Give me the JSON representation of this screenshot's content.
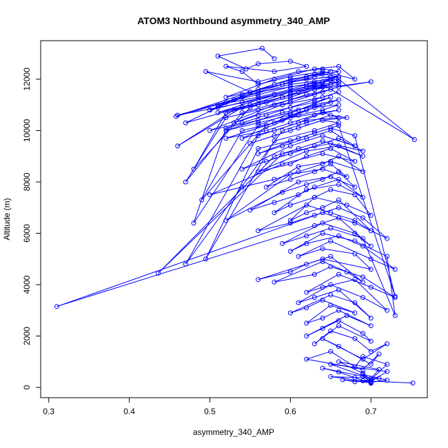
{
  "chart_data": {
    "type": "scatter",
    "style": "points connected by lines (sequence order)",
    "title": "ATOM3 Northbound asymmetry_340_AMP",
    "xlabel": "asymmetry_340_AMP",
    "ylabel": "Altitude (m)",
    "xlim": [
      0.29,
      0.77
    ],
    "ylim": [
      -400,
      13500
    ],
    "x_ticks": [
      "0.3",
      "0.4",
      "0.5",
      "0.6",
      "0.7"
    ],
    "x_tick_values": [
      0.3,
      0.4,
      0.5,
      0.6,
      0.7
    ],
    "y_ticks": [
      "0",
      "2000",
      "4000",
      "6000",
      "8000",
      "10000",
      "12000"
    ],
    "y_tick_values": [
      0,
      2000,
      4000,
      6000,
      8000,
      10000,
      12000
    ],
    "grid": false,
    "legend": "none",
    "color": "#0000ff",
    "series": [
      {
        "x": [
          0.752,
          0.69,
          0.7,
          0.665,
          0.68,
          0.71,
          0.65,
          0.7,
          0.72,
          0.69,
          0.7,
          0.68,
          0.66,
          0.64,
          0.69,
          0.7,
          0.72,
          0.65,
          0.7,
          0.71,
          0.66,
          0.69,
          0.7,
          0.72,
          0.69,
          0.68,
          0.65,
          0.62,
          0.69,
          0.71,
          0.7,
          0.66,
          0.64,
          0.69,
          0.72,
          0.7,
          0.68,
          0.65,
          0.63,
          0.66,
          0.7,
          0.69,
          0.66,
          0.64,
          0.62,
          0.67,
          0.7,
          0.66,
          0.64,
          0.62,
          0.65,
          0.68,
          0.64,
          0.62,
          0.6,
          0.65,
          0.68,
          0.7,
          0.66,
          0.63,
          0.61,
          0.65,
          0.69,
          0.72,
          0.68,
          0.64,
          0.62,
          0.66,
          0.7,
          0.73,
          0.69,
          0.65,
          0.63,
          0.58,
          0.64,
          0.67,
          0.69,
          0.65,
          0.62,
          0.6,
          0.56,
          0.64,
          0.7,
          0.68,
          0.64,
          0.61,
          0.65,
          0.7,
          0.73,
          0.69,
          0.66,
          0.62,
          0.6,
          0.64,
          0.68,
          0.72,
          0.73,
          0.69,
          0.65,
          0.62,
          0.59,
          0.64,
          0.68,
          0.7,
          0.66,
          0.63,
          0.31,
          0.64,
          0.68,
          0.72,
          0.69,
          0.66,
          0.63,
          0.6,
          0.56,
          0.62,
          0.65,
          0.68,
          0.7,
          0.66,
          0.64,
          0.62,
          0.6,
          0.63,
          0.67,
          0.7,
          0.68,
          0.65,
          0.63,
          0.6,
          0.58,
          0.62,
          0.66,
          0.69,
          0.66,
          0.63,
          0.61,
          0.58,
          0.55,
          0.61,
          0.65,
          0.68,
          0.66,
          0.64,
          0.62,
          0.59,
          0.52,
          0.6,
          0.64,
          0.67,
          0.65,
          0.63,
          0.6,
          0.57,
          0.61,
          0.65,
          0.69,
          0.66,
          0.64,
          0.61,
          0.58,
          0.54,
          0.5,
          0.59,
          0.64,
          0.68,
          0.65,
          0.62,
          0.6,
          0.56,
          0.62,
          0.66,
          0.69,
          0.64,
          0.61,
          0.58,
          0.436,
          0.59,
          0.65,
          0.69,
          0.66,
          0.63,
          0.6,
          0.57,
          0.54,
          0.6,
          0.64,
          0.68,
          0.65,
          0.62,
          0.59,
          0.56,
          0.61,
          0.65,
          0.68,
          0.73,
          0.66,
          0.63,
          0.6,
          0.56,
          0.495,
          0.58,
          0.63,
          0.66,
          0.64,
          0.61,
          0.58,
          0.55,
          0.6,
          0.64,
          0.67,
          0.65,
          0.62,
          0.59,
          0.47,
          0.56,
          0.62,
          0.66,
          0.64,
          0.61,
          0.58,
          0.54,
          0.6,
          0.64,
          0.66,
          0.63,
          0.6,
          0.57,
          0.52,
          0.59,
          0.63,
          0.66,
          0.64,
          0.61,
          0.58,
          0.54,
          0.49,
          0.57,
          0.62,
          0.65,
          0.63,
          0.6,
          0.56,
          0.52,
          0.59,
          0.64,
          0.66,
          0.63,
          0.6,
          0.56,
          0.52,
          0.48,
          0.56,
          0.61,
          0.65,
          0.63,
          0.6,
          0.56,
          0.53,
          0.59,
          0.64,
          0.66,
          0.63,
          0.6,
          0.57,
          0.54,
          0.5,
          0.58,
          0.62,
          0.65,
          0.63,
          0.6,
          0.56,
          0.52,
          0.47,
          0.54,
          0.6,
          0.64,
          0.66,
          0.7,
          0.63,
          0.6,
          0.56,
          0.52,
          0.48,
          0.55,
          0.61,
          0.65,
          0.63,
          0.6,
          0.57,
          0.53,
          0.46,
          0.54,
          0.6,
          0.64,
          0.66,
          0.63,
          0.59,
          0.55,
          0.51,
          0.58,
          0.63,
          0.65,
          0.62,
          0.58,
          0.54,
          0.5,
          0.56,
          0.62,
          0.66,
          0.754,
          0.64,
          0.6,
          0.56,
          0.51,
          0.46,
          0.54,
          0.6,
          0.65,
          0.66,
          0.63,
          0.59,
          0.55,
          0.47,
          0.53,
          0.6,
          0.65,
          0.66,
          0.62,
          0.58,
          0.54,
          0.5,
          0.56,
          0.62,
          0.66,
          0.64,
          0.6,
          0.56,
          0.52,
          0.458,
          0.54,
          0.6,
          0.64,
          0.66,
          0.63,
          0.6,
          0.56,
          0.51,
          0.58,
          0.63,
          0.65,
          0.62,
          0.59,
          0.55,
          0.495,
          0.56,
          0.61,
          0.64,
          0.66,
          0.63,
          0.59,
          0.55,
          0.52,
          0.58,
          0.63,
          0.66,
          0.68,
          0.64,
          0.6,
          0.56,
          0.54,
          0.52,
          0.58,
          0.62,
          0.6,
          0.56,
          0.545,
          0.51,
          0.565,
          0.58
        ],
        "y": [
          170,
          260,
          180,
          300,
          220,
          350,
          420,
          200,
          280,
          510,
          160,
          380,
          600,
          750,
          430,
          230,
          620,
          900,
          350,
          700,
          1000,
          550,
          300,
          900,
          1200,
          800,
          1400,
          1100,
          700,
          1300,
          900,
          1600,
          1900,
          1100,
          1700,
          1400,
          1900,
          2200,
          1700,
          2400,
          1800,
          2100,
          2600,
          2300,
          2000,
          2800,
          2400,
          3000,
          2700,
          2500,
          3200,
          2900,
          3400,
          3100,
          2900,
          3600,
          3300,
          2700,
          3800,
          3500,
          3300,
          4000,
          3500,
          3000,
          4200,
          3900,
          3700,
          4400,
          3900,
          3500,
          4300,
          4700,
          4400,
          4100,
          4900,
          4500,
          4100,
          5100,
          4800,
          4500,
          4200,
          5000,
          4600,
          5200,
          5400,
          5100,
          5700,
          5000,
          4600,
          5500,
          5900,
          5600,
          5300,
          6000,
          5700,
          5100,
          2800,
          5800,
          6200,
          5900,
          5600,
          6400,
          6000,
          5500,
          6600,
          6300,
          3150,
          6800,
          6400,
          5800,
          6600,
          7000,
          6700,
          6400,
          6100,
          7100,
          6800,
          6500,
          6100,
          7300,
          7000,
          6800,
          6500,
          7400,
          7100,
          6700,
          7500,
          7700,
          7400,
          7100,
          6800,
          7700,
          7900,
          7400,
          8100,
          7800,
          7500,
          7200,
          6900,
          8000,
          8200,
          7800,
          8400,
          8100,
          7900,
          7600,
          6500,
          8300,
          8500,
          8200,
          8700,
          8400,
          8100,
          7800,
          8600,
          8800,
          8400,
          9000,
          8700,
          8400,
          8100,
          7800,
          7500,
          8700,
          9100,
          8800,
          9300,
          9000,
          8700,
          8400,
          9200,
          9400,
          9000,
          9600,
          9300,
          9000,
          4450,
          9100,
          9500,
          9200,
          9700,
          9400,
          9100,
          8800,
          8500,
          9400,
          9800,
          9400,
          10000,
          9700,
          9400,
          9100,
          9700,
          10100,
          9800,
          3550,
          10200,
          9900,
          9600,
          9300,
          5000,
          9600,
          10000,
          10300,
          10400,
          10100,
          9800,
          9500,
          10000,
          10400,
          10500,
          10600,
          10300,
          10000,
          4800,
          9800,
          10400,
          10500,
          10700,
          10300,
          10000,
          9700,
          10500,
          10700,
          10800,
          10600,
          10300,
          10000,
          9700,
          10400,
          10900,
          11000,
          10800,
          10600,
          10300,
          10000,
          7300,
          10200,
          10800,
          11100,
          10900,
          10600,
          10300,
          10000,
          10700,
          11000,
          11200,
          11000,
          10700,
          10400,
          10100,
          6400,
          10200,
          10800,
          11300,
          11100,
          10900,
          10600,
          10300,
          11000,
          11300,
          11500,
          11200,
          10900,
          10600,
          10300,
          10000,
          11000,
          11400,
          11600,
          11400,
          11100,
          10800,
          10500,
          8000,
          10700,
          11200,
          11500,
          11700,
          11900,
          11600,
          11300,
          11000,
          10700,
          8500,
          10900,
          11500,
          11800,
          11700,
          11400,
          11100,
          10800,
          9400,
          10900,
          11500,
          11700,
          11900,
          11600,
          11300,
          11000,
          10700,
          11400,
          11800,
          11950,
          11700,
          11400,
          11100,
          10800,
          11500,
          11800,
          12000,
          9650,
          11800,
          11500,
          11200,
          10900,
          10600,
          11300,
          11800,
          12000,
          11800,
          11600,
          11300,
          11000,
          10300,
          11200,
          11900,
          12100,
          11900,
          11700,
          11400,
          11100,
          10800,
          11600,
          12000,
          12100,
          11900,
          11700,
          11400,
          11100,
          10550,
          11400,
          12000,
          12200,
          12100,
          11900,
          11600,
          11300,
          11000,
          11800,
          12200,
          12300,
          12100,
          11800,
          11500,
          12300,
          11900,
          12300,
          12400,
          12300,
          12100,
          11800,
          11500,
          11300,
          12000,
          12400,
          12500,
          12000,
          12300,
          12100,
          11800,
          12300,
          12500,
          12300,
          12500,
          12700,
          12600,
          12400,
          12900,
          13200,
          12800
        ]
      }
    ]
  }
}
